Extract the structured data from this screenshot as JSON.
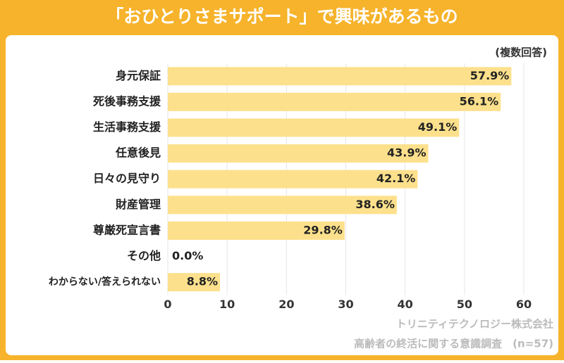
{
  "chart_data": {
    "type": "bar",
    "orientation": "horizontal",
    "title": "「おひとりさまサポート」で興味があるもの",
    "note": "(複数回答)",
    "source": [
      "トリニティテクノロジー株式会社",
      "高齢者の終活に関する意識調査　(n=57)"
    ],
    "categories": [
      "身元保証",
      "死後事務支援",
      "生活事務支援",
      "任意後見",
      "日々の見守り",
      "財産管理",
      "尊厳死宣言書",
      "その他",
      "わからない/答えられない"
    ],
    "values": [
      57.9,
      56.1,
      49.1,
      43.9,
      42.1,
      38.6,
      29.8,
      0.0,
      8.8
    ],
    "value_labels": [
      "57.9%",
      "56.1%",
      "49.1%",
      "43.9%",
      "42.1%",
      "38.6%",
      "29.8%",
      "0.0%",
      "8.8%"
    ],
    "color": "#fde08c",
    "xlim": [
      0,
      60
    ],
    "xticks": [
      0,
      10,
      20,
      30,
      40,
      50,
      60
    ],
    "grid": true
  }
}
